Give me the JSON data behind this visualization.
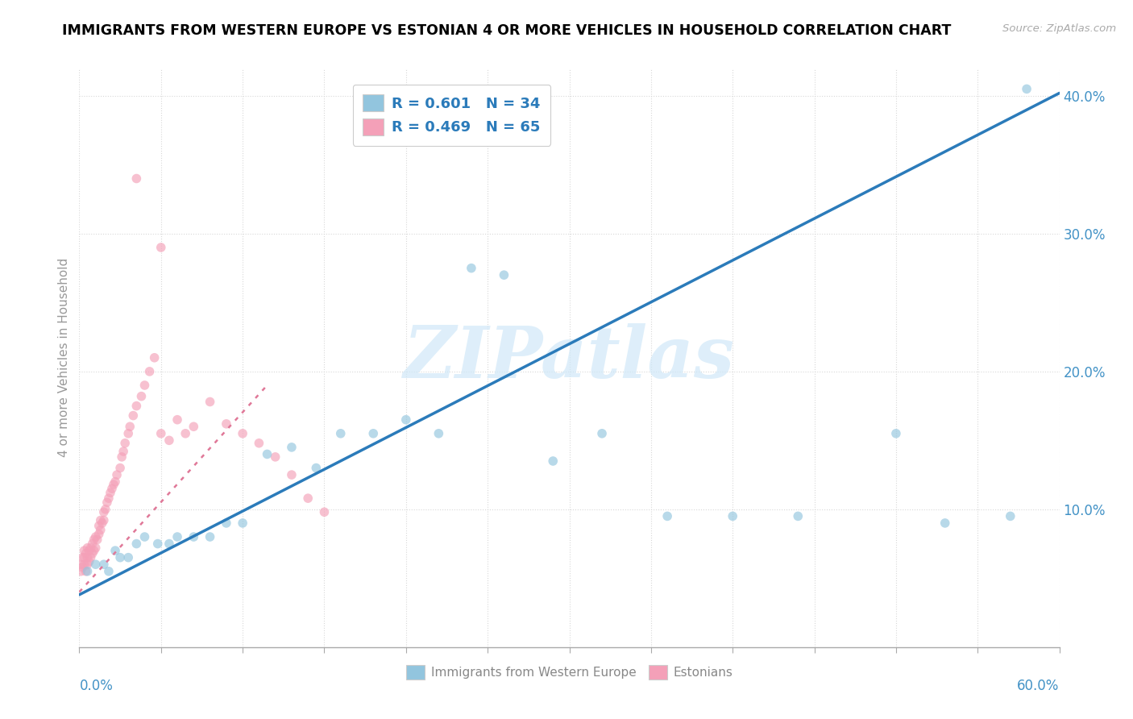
{
  "title": "IMMIGRANTS FROM WESTERN EUROPE VS ESTONIAN 4 OR MORE VEHICLES IN HOUSEHOLD CORRELATION CHART",
  "source": "Source: ZipAtlas.com",
  "ylabel": "4 or more Vehicles in Household",
  "xlim": [
    0.0,
    0.6
  ],
  "ylim": [
    0.0,
    0.42
  ],
  "yticks": [
    0.1,
    0.2,
    0.3,
    0.4
  ],
  "xtick_left_label": "0.0%",
  "xtick_right_label": "60.0%",
  "legend_r1": "R = 0.601",
  "legend_n1": "N = 34",
  "legend_r2": "R = 0.469",
  "legend_n2": "N = 65",
  "color_blue": "#92c5de",
  "color_pink": "#f4a0b8",
  "trendline_blue": "#2b7bba",
  "trendline_pink": "#e07898",
  "watermark_text": "ZIPatlas",
  "watermark_color": "#d0e8f8",
  "legend1_label": "Immigrants from Western Europe",
  "legend2_label": "Estonians",
  "tick_label_color": "#4292c6",
  "axis_label_color": "#999999",
  "blue_x": [
    0.005,
    0.01,
    0.015,
    0.018,
    0.022,
    0.025,
    0.03,
    0.035,
    0.04,
    0.048,
    0.055,
    0.06,
    0.07,
    0.08,
    0.09,
    0.1,
    0.115,
    0.13,
    0.145,
    0.16,
    0.18,
    0.2,
    0.22,
    0.24,
    0.26,
    0.29,
    0.32,
    0.36,
    0.4,
    0.44,
    0.5,
    0.53,
    0.57,
    0.58
  ],
  "blue_y": [
    0.055,
    0.06,
    0.06,
    0.055,
    0.07,
    0.065,
    0.065,
    0.075,
    0.08,
    0.075,
    0.075,
    0.08,
    0.08,
    0.08,
    0.09,
    0.09,
    0.14,
    0.145,
    0.13,
    0.155,
    0.155,
    0.165,
    0.155,
    0.275,
    0.27,
    0.135,
    0.155,
    0.095,
    0.095,
    0.095,
    0.155,
    0.09,
    0.095,
    0.405
  ],
  "pink_x": [
    0.001,
    0.001,
    0.002,
    0.002,
    0.003,
    0.003,
    0.003,
    0.004,
    0.004,
    0.005,
    0.005,
    0.005,
    0.006,
    0.006,
    0.007,
    0.007,
    0.008,
    0.008,
    0.009,
    0.009,
    0.01,
    0.01,
    0.011,
    0.012,
    0.012,
    0.013,
    0.013,
    0.014,
    0.015,
    0.015,
    0.016,
    0.017,
    0.018,
    0.019,
    0.02,
    0.021,
    0.022,
    0.023,
    0.025,
    0.026,
    0.027,
    0.028,
    0.03,
    0.031,
    0.033,
    0.035,
    0.038,
    0.04,
    0.043,
    0.046,
    0.05,
    0.055,
    0.06,
    0.065,
    0.07,
    0.08,
    0.09,
    0.1,
    0.11,
    0.12,
    0.13,
    0.14,
    0.15,
    0.035,
    0.05
  ],
  "pink_y": [
    0.055,
    0.06,
    0.058,
    0.065,
    0.06,
    0.065,
    0.07,
    0.055,
    0.068,
    0.06,
    0.065,
    0.072,
    0.062,
    0.07,
    0.065,
    0.072,
    0.068,
    0.075,
    0.07,
    0.078,
    0.072,
    0.08,
    0.078,
    0.082,
    0.088,
    0.085,
    0.092,
    0.09,
    0.092,
    0.098,
    0.1,
    0.105,
    0.108,
    0.112,
    0.115,
    0.118,
    0.12,
    0.125,
    0.13,
    0.138,
    0.142,
    0.148,
    0.155,
    0.16,
    0.168,
    0.175,
    0.182,
    0.19,
    0.2,
    0.21,
    0.155,
    0.15,
    0.165,
    0.155,
    0.16,
    0.178,
    0.162,
    0.155,
    0.148,
    0.138,
    0.125,
    0.108,
    0.098,
    0.34,
    0.29
  ],
  "trendline_blue_x0": 0.0,
  "trendline_blue_y0": 0.038,
  "trendline_blue_x1": 0.6,
  "trendline_blue_y1": 0.402,
  "trendline_pink_x0": 0.0,
  "trendline_pink_y0": 0.04,
  "trendline_pink_x1": 0.115,
  "trendline_pink_y1": 0.19
}
